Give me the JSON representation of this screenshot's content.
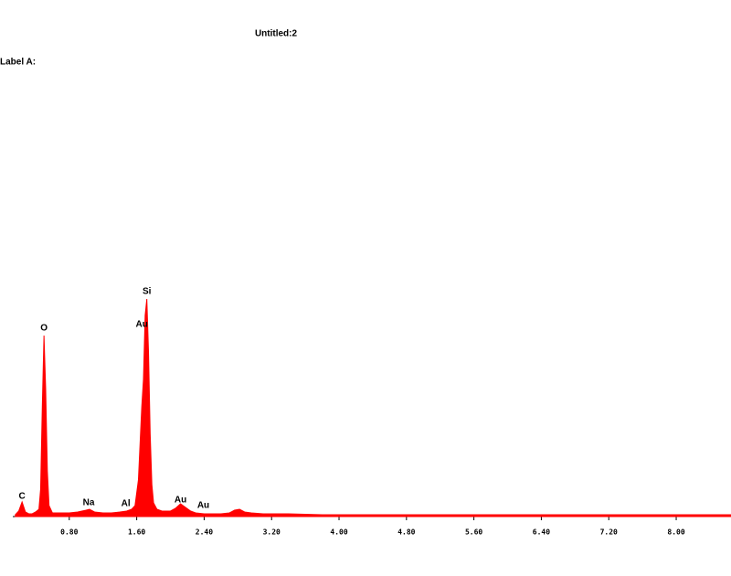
{
  "chart_data": {
    "type": "area",
    "title": "Untitled:2",
    "subtitle": "Label A:",
    "color": "#ff0000",
    "x": [
      0.16,
      0.2,
      0.24,
      0.28,
      0.32,
      0.36,
      0.4,
      0.44,
      0.46,
      0.48,
      0.5,
      0.52,
      0.54,
      0.56,
      0.6,
      0.7,
      0.8,
      0.9,
      1.0,
      1.04,
      1.1,
      1.2,
      1.3,
      1.4,
      1.48,
      1.54,
      1.58,
      1.62,
      1.66,
      1.68,
      1.7,
      1.72,
      1.74,
      1.76,
      1.78,
      1.8,
      1.84,
      1.9,
      2.0,
      2.06,
      2.12,
      2.18,
      2.24,
      2.3,
      2.4,
      2.5,
      2.6,
      2.7,
      2.76,
      2.82,
      2.88,
      2.96,
      3.1,
      3.4,
      3.8,
      4.2,
      4.6,
      5.0,
      5.5,
      6.0,
      6.5,
      7.0,
      7.5,
      8.0,
      8.5,
      8.65
    ],
    "values": [
      2,
      6,
      16,
      5,
      3,
      3,
      5,
      8,
      30,
      120,
      198,
      140,
      50,
      12,
      4,
      4,
      4,
      5,
      7,
      8,
      5,
      4,
      4,
      5,
      6,
      8,
      12,
      40,
      120,
      150,
      220,
      238,
      180,
      90,
      35,
      15,
      8,
      6,
      6,
      9,
      14,
      10,
      6,
      4,
      3,
      3,
      3,
      4,
      7,
      8,
      5,
      4,
      3,
      3,
      2,
      2,
      2,
      2,
      2,
      2,
      2,
      2,
      2,
      2,
      2,
      2
    ],
    "xlim": [
      0.13,
      8.65
    ],
    "ylim": [
      0,
      250
    ],
    "xticks": [
      {
        "value": 0.8,
        "label": "0.80"
      },
      {
        "value": 1.6,
        "label": "1.60"
      },
      {
        "value": 2.4,
        "label": "2.40"
      },
      {
        "value": 3.2,
        "label": "3.20"
      },
      {
        "value": 4.0,
        "label": "4.00"
      },
      {
        "value": 4.8,
        "label": "4.80"
      },
      {
        "value": 5.6,
        "label": "5.60"
      },
      {
        "value": 6.4,
        "label": "6.40"
      },
      {
        "value": 7.2,
        "label": "7.20"
      },
      {
        "value": 8.0,
        "label": "8.00"
      }
    ],
    "annotations": [
      {
        "text": "C",
        "x": 0.24,
        "y": 22
      },
      {
        "text": "O",
        "x": 0.5,
        "y": 206
      },
      {
        "text": "Na",
        "x": 1.03,
        "y": 15
      },
      {
        "text": "Al",
        "x": 1.47,
        "y": 14
      },
      {
        "text": "Si",
        "x": 1.72,
        "y": 246
      },
      {
        "text": "Au",
        "x": 1.66,
        "y": 210
      },
      {
        "text": "Au",
        "x": 2.12,
        "y": 18
      },
      {
        "text": "Au",
        "x": 2.39,
        "y": 12
      }
    ]
  }
}
